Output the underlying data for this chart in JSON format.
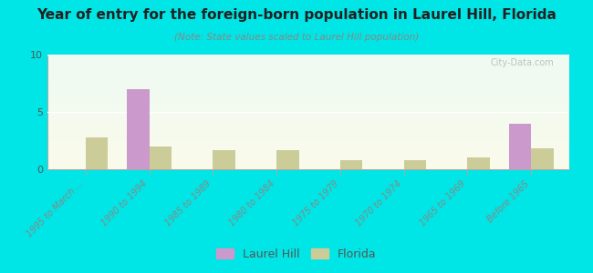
{
  "title": "Year of entry for the foreign-born population in Laurel Hill, Florida",
  "subtitle": "(Note: State values scaled to Laurel Hill population)",
  "categories": [
    "1995 to March ...",
    "1990 to 1994",
    "1985 to 1989",
    "1980 to 1984",
    "1975 to 1979",
    "1970 to 1974",
    "1965 to 1969",
    "Before 1965"
  ],
  "laurel_hill": [
    0,
    7,
    0,
    0,
    0,
    0,
    0,
    4
  ],
  "florida": [
    2.8,
    2.0,
    1.7,
    1.7,
    0.8,
    0.8,
    1.0,
    1.8
  ],
  "laurel_hill_color": "#cc99cc",
  "florida_color": "#cccc99",
  "ylim": [
    0,
    10
  ],
  "yticks": [
    0,
    5,
    10
  ],
  "background_top": "#f5f5e8",
  "background_bottom": "#e8f5e8",
  "outer_bg": "#00e5e5",
  "watermark": "City-Data.com",
  "bar_width": 0.35
}
